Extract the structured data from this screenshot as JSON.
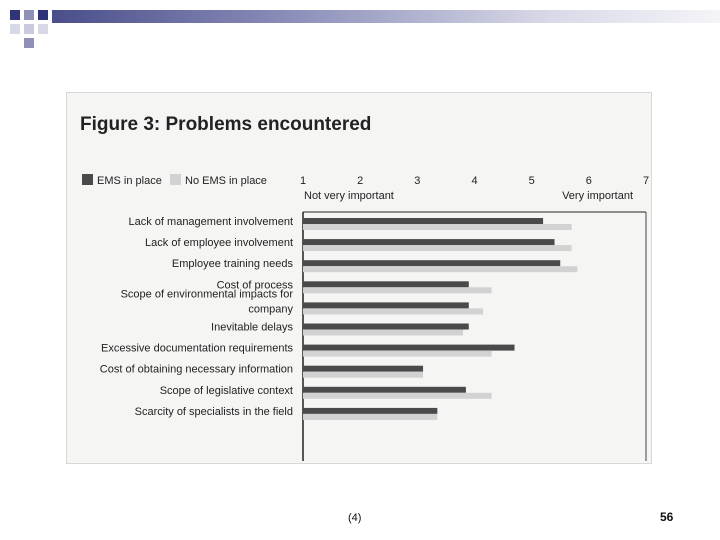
{
  "slide": {
    "footer_ref": "(4)",
    "page_number": "56"
  },
  "colors": {
    "ems": "#4a4a4a",
    "no_ems": "#d2d2d2",
    "panel": "#f5f5f4"
  },
  "chart_data": {
    "type": "bar",
    "orientation": "horizontal",
    "title": "Figure 3: Problems encountered",
    "xlim": [
      1,
      7
    ],
    "x_ticks": [
      "1",
      "2",
      "3",
      "4",
      "5",
      "6",
      "7"
    ],
    "scale_low_label": "Not very important",
    "scale_high_label": "Very important",
    "legend_position": "top-left",
    "categories": [
      "Lack of management involvement",
      "Lack of employee involvement",
      "Employee training needs",
      "Cost of process",
      "Scope of environmental impacts for company",
      "Inevitable delays",
      "Excessive documentation requirements",
      "Cost of obtaining necessary information",
      "Scope of legislative context",
      "Scarcity of specialists in the field"
    ],
    "series": [
      {
        "name": "EMS in place",
        "values": [
          5.2,
          5.4,
          5.5,
          3.9,
          3.9,
          3.9,
          4.7,
          3.1,
          3.85,
          3.35
        ]
      },
      {
        "name": "No EMS in place",
        "values": [
          5.7,
          5.7,
          5.8,
          4.3,
          4.15,
          3.8,
          4.3,
          3.1,
          4.3,
          3.35
        ]
      }
    ]
  }
}
